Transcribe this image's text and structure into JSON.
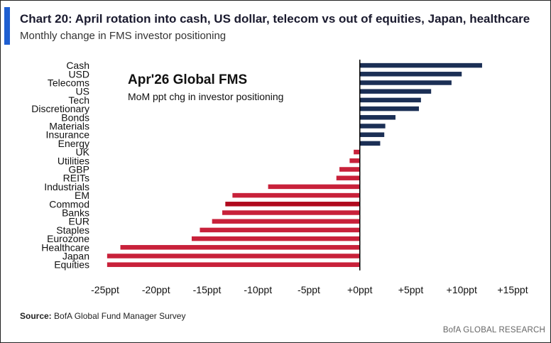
{
  "header": {
    "title": "Chart 20: April rotation into cash, US dollar, telecom vs out of equities, Japan, healthcare",
    "subtitle": "Monthly change in FMS investor positioning"
  },
  "footer": {
    "source_label": "Source:",
    "source_text": "BofA Global Fund Manager Survey",
    "brand": "BofA GLOBAL RESEARCH"
  },
  "colors": {
    "positive": "#1b2f55",
    "negative": "#c8213a",
    "highlight": "#b00a1e",
    "accent": "#1f5fd1"
  },
  "chart_data": {
    "type": "bar",
    "orientation": "horizontal",
    "inset_title": "Apr'26 Global FMS",
    "inset_subtitle": "MoM ppt chg in investor positioning",
    "categories": [
      "Cash",
      "USD",
      "Telecoms",
      "US",
      "Tech",
      "Discretionary",
      "Bonds",
      "Materials",
      "Insurance",
      "Energy",
      "UK",
      "Utilities",
      "GBP",
      "REITs",
      "Industrials",
      "EM",
      "Commod",
      "Banks",
      "EUR",
      "Staples",
      "Eurozone",
      "Healthcare",
      "Japan",
      "Equities"
    ],
    "values": [
      12,
      10,
      9,
      7,
      6,
      5.8,
      3.5,
      2.5,
      2.4,
      2,
      -0.6,
      -1,
      -2,
      -2.3,
      -9,
      -12.5,
      -13.2,
      -13.5,
      -14.5,
      -15.7,
      -16.5,
      -23.5,
      -24.8,
      -24.8
    ],
    "highlight_category": "Commod",
    "xlim": [
      -25,
      15
    ],
    "xticks": [
      -25,
      -20,
      -15,
      -10,
      -5,
      0,
      5,
      10,
      15
    ],
    "xtick_labels": [
      "-25ppt",
      "-20ppt",
      "-15ppt",
      "-10ppt",
      "-5ppt",
      "+0ppt",
      "+5ppt",
      "+10ppt",
      "+15ppt"
    ],
    "grid": false,
    "legend": "none"
  }
}
